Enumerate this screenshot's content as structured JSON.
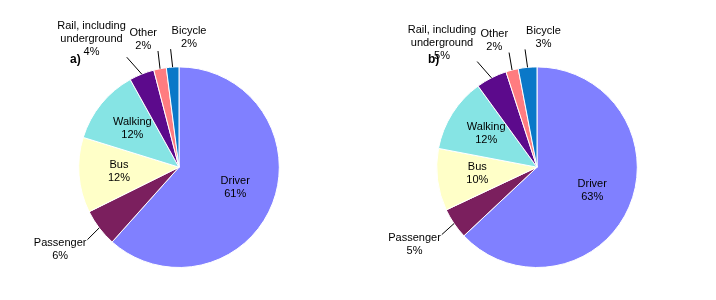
{
  "chart_data": [
    {
      "type": "pie",
      "title": "a)",
      "categories": [
        "Driver",
        "Passenger",
        "Bus",
        "Walking",
        "Rail, including underground",
        "Other",
        "Bicycle"
      ],
      "values": [
        61,
        6,
        12,
        12,
        4,
        2,
        2
      ],
      "value_labels": [
        "61%",
        "6%",
        "12%",
        "12%",
        "4%",
        "2%",
        "2%"
      ],
      "colors": [
        "#8080ff",
        "#7b1f5e",
        "#ffffc8",
        "#86e4e4",
        "#5c0a8c",
        "#ff7c80",
        "#0a78c8"
      ],
      "data_labels": true
    },
    {
      "type": "pie",
      "title": "b)",
      "categories": [
        "Driver",
        "Passenger",
        "Bus",
        "Walking",
        "Rail, including underground",
        "Other",
        "Bicycle"
      ],
      "values": [
        63,
        5,
        10,
        12,
        5,
        2,
        3
      ],
      "value_labels": [
        "63%",
        "5%",
        "10%",
        "12%",
        "5%",
        "2%",
        "3%"
      ],
      "colors": [
        "#8080ff",
        "#7b1f5e",
        "#ffffc8",
        "#86e4e4",
        "#5c0a8c",
        "#ff7c80",
        "#0a78c8"
      ],
      "data_labels": true
    }
  ]
}
